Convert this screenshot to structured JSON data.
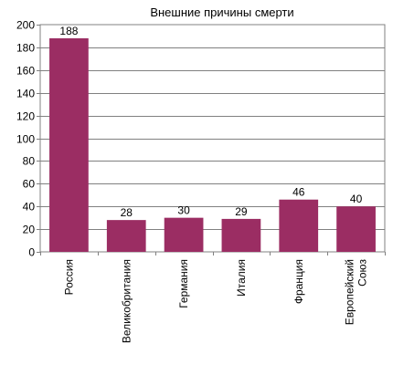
{
  "chart_data": {
    "type": "bar",
    "title": "Внешние причины смерти",
    "categories": [
      "Россия",
      "Великобритания",
      "Германия",
      "Италия",
      "Франция",
      "Европейский Союз"
    ],
    "category_lines": [
      [
        "Россия"
      ],
      [
        "Великобритания"
      ],
      [
        "Германия"
      ],
      [
        "Италия"
      ],
      [
        "Франция"
      ],
      [
        "Европейский",
        "Союз"
      ]
    ],
    "values": [
      188,
      28,
      30,
      29,
      46,
      40
    ],
    "data_labels": [
      "188",
      "28",
      "30",
      "29",
      "46",
      "40"
    ],
    "xlabel": "",
    "ylabel": "",
    "ylim": [
      0,
      200
    ],
    "yticks": [
      "0",
      "20",
      "40",
      "60",
      "80",
      "100",
      "120",
      "140",
      "160",
      "180",
      "200"
    ],
    "grid": true,
    "legend": "none",
    "colors": {
      "bar": "#9b2d63",
      "grid": "#808080",
      "axis": "#808080"
    }
  }
}
